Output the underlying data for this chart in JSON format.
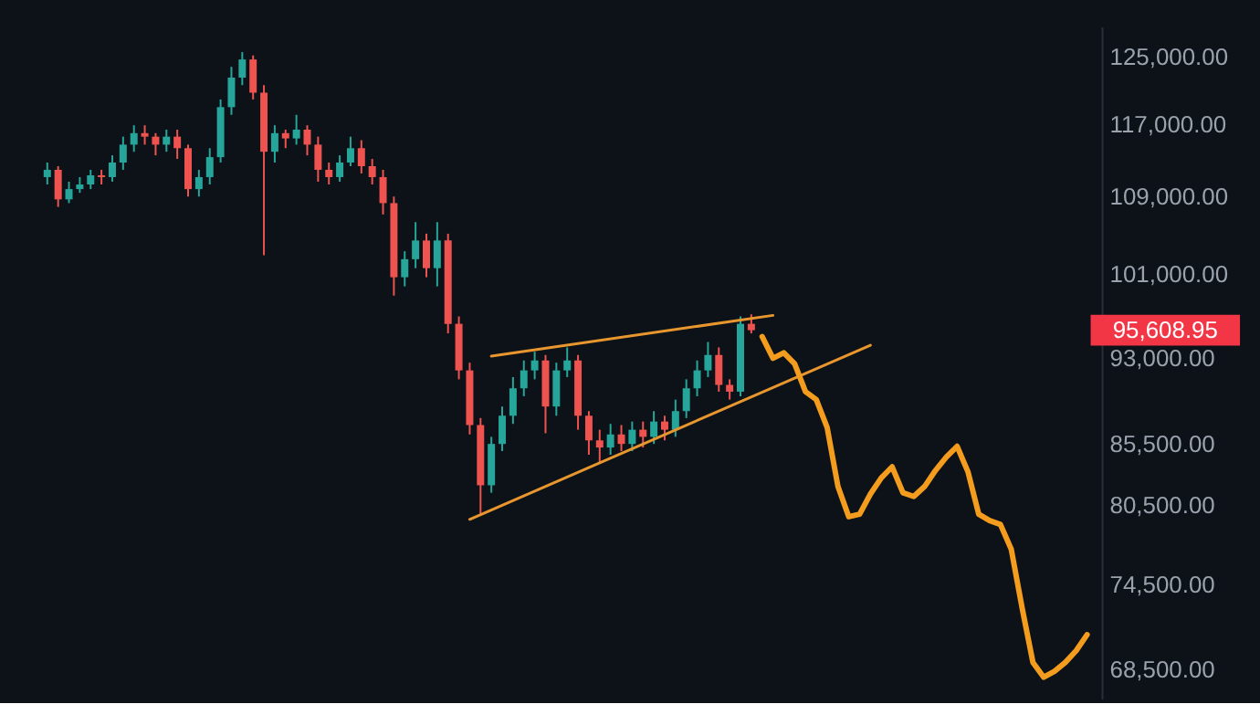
{
  "chart_data": {
    "type": "candlestick",
    "log": "y",
    "tick_labels": "y",
    "ylim": [
      66600,
      128800
    ],
    "yticks": [
      {
        "value": 125000,
        "label": "125,000.00"
      },
      {
        "value": 117000,
        "label": "117,000.00"
      },
      {
        "value": 109000,
        "label": "109,000.00"
      },
      {
        "value": 101000,
        "label": "101,000.00"
      },
      {
        "value": 93000,
        "label": "93,000.00"
      },
      {
        "value": 85500,
        "label": "85,500.00"
      },
      {
        "value": 80500,
        "label": "80,500.00"
      },
      {
        "value": 74500,
        "label": "74,500.00"
      },
      {
        "value": 68500,
        "label": "68,500.00"
      }
    ],
    "categories": [
      null,
      null,
      null,
      null,
      null,
      null,
      null,
      null,
      null,
      null,
      null,
      null,
      null,
      null,
      null,
      null,
      null,
      null,
      null,
      null,
      null,
      null,
      null,
      null,
      null,
      null,
      null,
      null,
      null,
      null,
      null,
      null,
      null,
      null,
      null,
      null,
      null,
      null,
      null,
      null,
      null,
      null,
      null,
      null,
      null,
      null,
      null,
      null,
      null,
      null,
      null,
      null,
      null,
      null,
      null,
      null,
      null,
      null,
      null,
      null,
      null,
      null,
      null,
      null,
      null,
      null,
      null,
      null,
      null,
      null,
      null,
      null,
      null,
      null,
      null,
      null,
      null,
      null,
      null,
      null,
      null,
      null,
      null,
      null,
      null,
      null,
      null,
      null,
      null,
      null,
      null,
      null,
      null,
      null,
      null,
      null,
      null
    ],
    "ohlc": [
      [
        111100,
        112700,
        110300,
        111900
      ],
      [
        111900,
        112300,
        107900,
        108700
      ],
      [
        108700,
        110600,
        108300,
        109800
      ],
      [
        109800,
        111100,
        109400,
        110300
      ],
      [
        110300,
        111900,
        109800,
        111300
      ],
      [
        111300,
        111900,
        110300,
        111100
      ],
      [
        111100,
        113500,
        110600,
        112700
      ],
      [
        112700,
        115600,
        111900,
        114700
      ],
      [
        114700,
        116900,
        113900,
        116000
      ],
      [
        116000,
        116900,
        114700,
        115600
      ],
      [
        115600,
        116000,
        113500,
        114700
      ],
      [
        114700,
        116400,
        113900,
        115600
      ],
      [
        115600,
        116400,
        113100,
        114300
      ],
      [
        114300,
        114700,
        109000,
        109800
      ],
      [
        109800,
        111900,
        109000,
        111100
      ],
      [
        111100,
        114300,
        110300,
        113300
      ],
      [
        113300,
        119900,
        112700,
        119000
      ],
      [
        119000,
        123800,
        118100,
        122500
      ],
      [
        122500,
        125600,
        121600,
        124700
      ],
      [
        124700,
        125200,
        119900,
        120700
      ],
      [
        120700,
        121600,
        102900,
        113900
      ],
      [
        113900,
        116900,
        112700,
        116000
      ],
      [
        116000,
        116400,
        114300,
        115400
      ],
      [
        115400,
        118100,
        114700,
        116400
      ],
      [
        116400,
        116900,
        113500,
        114700
      ],
      [
        114700,
        115600,
        110600,
        111900
      ],
      [
        111900,
        112700,
        110300,
        111100
      ],
      [
        111100,
        113500,
        110600,
        112700
      ],
      [
        112700,
        115600,
        112300,
        114300
      ],
      [
        114300,
        115200,
        111500,
        112300
      ],
      [
        112300,
        113100,
        110300,
        111100
      ],
      [
        111100,
        111900,
        107100,
        108300
      ],
      [
        108300,
        109000,
        98900,
        100700
      ],
      [
        100700,
        103300,
        99800,
        102500
      ],
      [
        102500,
        106300,
        101600,
        104400
      ],
      [
        104400,
        105100,
        100700,
        101600
      ],
      [
        101600,
        106300,
        99800,
        104400
      ],
      [
        104400,
        105100,
        95300,
        96200
      ],
      [
        96200,
        96900,
        91100,
        91900
      ],
      [
        91900,
        92600,
        86300,
        87100
      ],
      [
        87100,
        87700,
        79800,
        82100
      ],
      [
        82100,
        86100,
        81500,
        85500
      ],
      [
        85500,
        88700,
        84900,
        87900
      ],
      [
        87900,
        91300,
        87200,
        90300
      ],
      [
        90300,
        92800,
        89600,
        91900
      ],
      [
        91900,
        93600,
        91100,
        92800
      ],
      [
        92800,
        93300,
        86400,
        88700
      ],
      [
        88700,
        92600,
        87900,
        91900
      ],
      [
        91900,
        94000,
        91300,
        92800
      ],
      [
        92800,
        93300,
        86700,
        87900
      ],
      [
        87900,
        88300,
        84600,
        85800
      ],
      [
        85800,
        86700,
        83900,
        85200
      ],
      [
        85200,
        87200,
        84600,
        86300
      ],
      [
        86300,
        87100,
        84900,
        85500
      ],
      [
        85500,
        87400,
        84900,
        86700
      ],
      [
        86700,
        87400,
        85200,
        86100
      ],
      [
        86100,
        88300,
        85500,
        87400
      ],
      [
        87400,
        87900,
        85800,
        86700
      ],
      [
        86700,
        89300,
        86100,
        88300
      ],
      [
        88300,
        91100,
        87700,
        90300
      ],
      [
        90300,
        92800,
        89600,
        91900
      ],
      [
        91900,
        94500,
        91300,
        93300
      ],
      [
        93300,
        94000,
        90000,
        90600
      ],
      [
        90600,
        91100,
        89300,
        90000
      ],
      [
        90000,
        96900,
        89600,
        96200
      ],
      [
        96200,
        97100,
        95300,
        95600
      ],
      null,
      null,
      null,
      null,
      null,
      null,
      null,
      null,
      null,
      null,
      null,
      null,
      null,
      null,
      null,
      null,
      null,
      null,
      null,
      null,
      null,
      null,
      null,
      null,
      null,
      null,
      null,
      null,
      null,
      null,
      null
    ],
    "colors": [
      "#26a69a",
      "#ef5350",
      "#26a69a",
      "#26a69a",
      "#26a69a",
      "#ef5350",
      "#26a69a",
      "#26a69a",
      "#26a69a",
      "#ef5350",
      "#ef5350",
      "#26a69a",
      "#ef5350",
      "#ef5350",
      "#26a69a",
      "#26a69a",
      "#26a69a",
      "#26a69a",
      "#26a69a",
      "#ef5350",
      "#ef5350",
      "#26a69a",
      "#ef5350",
      "#26a69a",
      "#ef5350",
      "#ef5350",
      "#ef5350",
      "#26a69a",
      "#26a69a",
      "#ef5350",
      "#ef5350",
      "#ef5350",
      "#ef5350",
      "#26a69a",
      "#26a69a",
      "#ef5350",
      "#26a69a",
      "#ef5350",
      "#ef5350",
      "#ef5350",
      "#ef5350",
      "#26a69a",
      "#26a69a",
      "#26a69a",
      "#26a69a",
      "#26a69a",
      "#ef5350",
      "#26a69a",
      "#26a69a",
      "#ef5350",
      "#ef5350",
      "#ef5350",
      "#26a69a",
      "#ef5350",
      "#26a69a",
      "#ef5350",
      "#26a69a",
      "#ef5350",
      "#26a69a",
      "#26a69a",
      "#26a69a",
      "#26a69a",
      "#ef5350",
      "#ef5350",
      "#26a69a",
      "#ef5350",
      null,
      null,
      null,
      null,
      null,
      null,
      null,
      null,
      null,
      null,
      null,
      null,
      null,
      null,
      null,
      null,
      null,
      null,
      null,
      null,
      null,
      null,
      null,
      null,
      null,
      null,
      null,
      null,
      null,
      null,
      null
    ],
    "series": [
      {
        "type": "line",
        "color": "#e8962e",
        "values": [
          null,
          null,
          null,
          null,
          null,
          null,
          null,
          null,
          null,
          null,
          null,
          null,
          null,
          null,
          null,
          null,
          null,
          null,
          null,
          null,
          null,
          null,
          null,
          null,
          null,
          null,
          null,
          null,
          null,
          null,
          null,
          null,
          null,
          null,
          null,
          null,
          null,
          null,
          null,
          null,
          null,
          93200,
          null,
          null,
          null,
          null,
          null,
          null,
          null,
          null,
          null,
          null,
          null,
          null,
          null,
          null,
          null,
          null,
          null,
          null,
          null,
          null,
          null,
          null,
          null,
          null,
          null,
          97000,
          null,
          null,
          null,
          null,
          null,
          null,
          null,
          null,
          null,
          null,
          null,
          null,
          null,
          null,
          null,
          null,
          null,
          null,
          null,
          null,
          null,
          null,
          null,
          null,
          null,
          null,
          null,
          null,
          null
        ]
      },
      {
        "type": "line",
        "color": "#e8962e",
        "values": [
          null,
          null,
          null,
          null,
          null,
          null,
          null,
          null,
          null,
          null,
          null,
          null,
          null,
          null,
          null,
          null,
          null,
          null,
          null,
          null,
          null,
          null,
          null,
          null,
          null,
          null,
          null,
          null,
          null,
          null,
          null,
          null,
          null,
          null,
          null,
          null,
          null,
          null,
          null,
          79400,
          null,
          null,
          null,
          null,
          null,
          null,
          null,
          null,
          null,
          null,
          null,
          null,
          null,
          null,
          null,
          null,
          null,
          null,
          null,
          null,
          null,
          null,
          null,
          null,
          null,
          null,
          null,
          null,
          null,
          null,
          null,
          null,
          null,
          null,
          null,
          null,
          94200,
          null,
          null,
          null,
          null,
          null,
          null,
          null,
          null,
          null,
          null,
          null,
          null,
          null,
          null,
          null,
          null,
          null,
          null,
          null,
          null
        ]
      },
      {
        "type": "line",
        "color": "#f39c1e",
        "values": [
          null,
          null,
          null,
          null,
          null,
          null,
          null,
          null,
          null,
          null,
          null,
          null,
          null,
          null,
          null,
          null,
          null,
          null,
          null,
          null,
          null,
          null,
          null,
          null,
          null,
          null,
          null,
          null,
          null,
          null,
          null,
          null,
          null,
          null,
          null,
          null,
          null,
          null,
          null,
          null,
          null,
          null,
          null,
          null,
          null,
          null,
          null,
          null,
          null,
          null,
          null,
          null,
          null,
          null,
          null,
          null,
          null,
          null,
          null,
          null,
          null,
          null,
          null,
          null,
          null,
          null,
          95000,
          93000,
          93500,
          92500,
          90000,
          89300,
          86900,
          82000,
          79600,
          79800,
          81400,
          82700,
          83600,
          81500,
          81200,
          82000,
          83300,
          84400,
          85300,
          83200,
          79800,
          79300,
          79000,
          77100,
          72800,
          69000,
          68000,
          68400,
          69000,
          69800,
          70900
        ]
      }
    ],
    "annotations": [
      "95,608.95"
    ]
  }
}
